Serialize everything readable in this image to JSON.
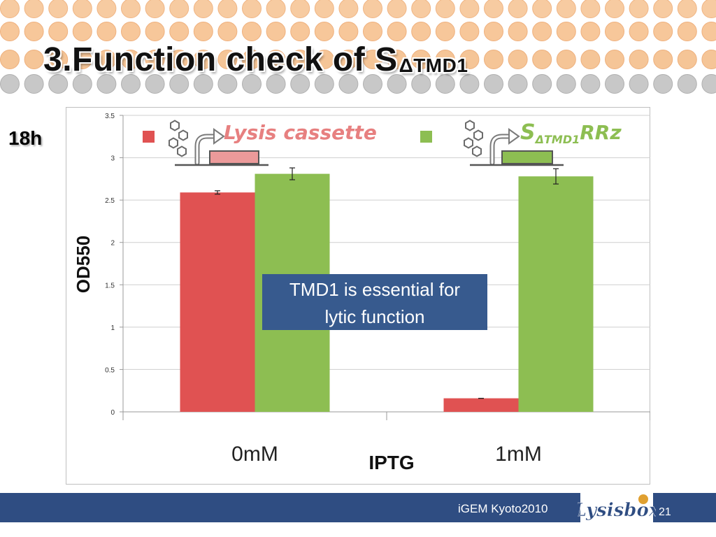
{
  "slide": {
    "title_main": "3.Function check of S",
    "title_sub": "ΔTMD1",
    "time_label": "18h",
    "footer_text": "iGEM Kyoto2010",
    "page_number": "21",
    "logo_text": "Lysisbox"
  },
  "colors": {
    "red": "#e05252",
    "green": "#8dbe52",
    "footer": "#2f4d82",
    "callout": "#375a8e"
  },
  "chart_data": {
    "type": "bar",
    "categories": [
      "0mM",
      "1mM"
    ],
    "series": [
      {
        "name": "Lysis cassette",
        "values": [
          2.59,
          0.16
        ],
        "errors": [
          0.02,
          0.0
        ]
      },
      {
        "name": "SΔTMD1RRz",
        "values": [
          2.81,
          2.78
        ],
        "errors": [
          0.07,
          0.09
        ]
      }
    ],
    "ylabel": "OD550",
    "xlabel": "IPTG",
    "ylim": [
      0,
      3.5
    ],
    "yticks": [
      0,
      0.5,
      1,
      1.5,
      2,
      2.5,
      3,
      3.5
    ],
    "ytick_labels": [
      "0",
      "0.5",
      "1",
      "1.5",
      "2",
      "2.5",
      "3",
      "3.5"
    ],
    "grid": true,
    "legend": [
      {
        "label_main": "Lysis cassette",
        "label_sub": ""
      },
      {
        "label_main": "S",
        "label_sub": "ΔTMD1",
        "label_tail": "RRz"
      }
    ],
    "annotation": {
      "line1": "TMD1 is essential for",
      "line2": "lytic function"
    }
  }
}
